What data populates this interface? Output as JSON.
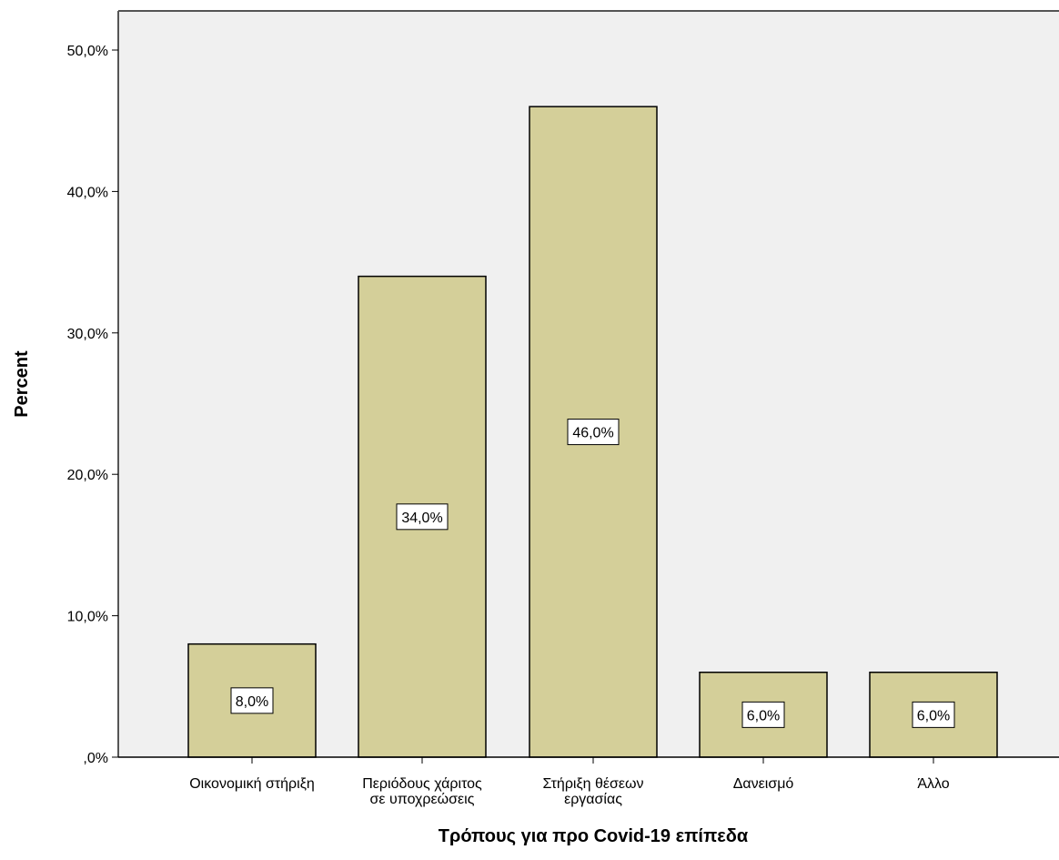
{
  "chart_data": {
    "type": "bar",
    "categories": [
      "Οικονομική στήριξη",
      "Περιόδους χάριτος σε υποχρεώσεις",
      "Στήριξη θέσεων εργασίας",
      "Δανεισμό",
      "Άλλο"
    ],
    "category_label_lines": [
      [
        "Οικονομική στήριξη"
      ],
      [
        "Περιόδους χάριτος",
        "σε υποχρεώσεις"
      ],
      [
        "Στήριξη θέσεων",
        "εργασίας"
      ],
      [
        "Δανεισμό"
      ],
      [
        "Άλλο"
      ]
    ],
    "values": [
      8.0,
      34.0,
      46.0,
      6.0,
      6.0
    ],
    "data_labels": [
      "8,0%",
      "34,0%",
      "46,0%",
      "6,0%",
      "6,0%"
    ],
    "xlabel": "Τρόπους για προ Covid-19 επίπεδα",
    "ylabel": "Percent",
    "ylim": [
      0,
      50
    ],
    "yticks": [
      0,
      10,
      20,
      30,
      40,
      50
    ],
    "ytick_labels": [
      ",0%",
      "10,0%",
      "20,0%",
      "30,0%",
      "40,0%",
      "50,0%"
    ],
    "grid": false,
    "colors": {
      "bar_fill": "#d4cf99",
      "bar_stroke": "#000000",
      "plot_background": "#f0f0f0",
      "frame": "#555555"
    }
  }
}
